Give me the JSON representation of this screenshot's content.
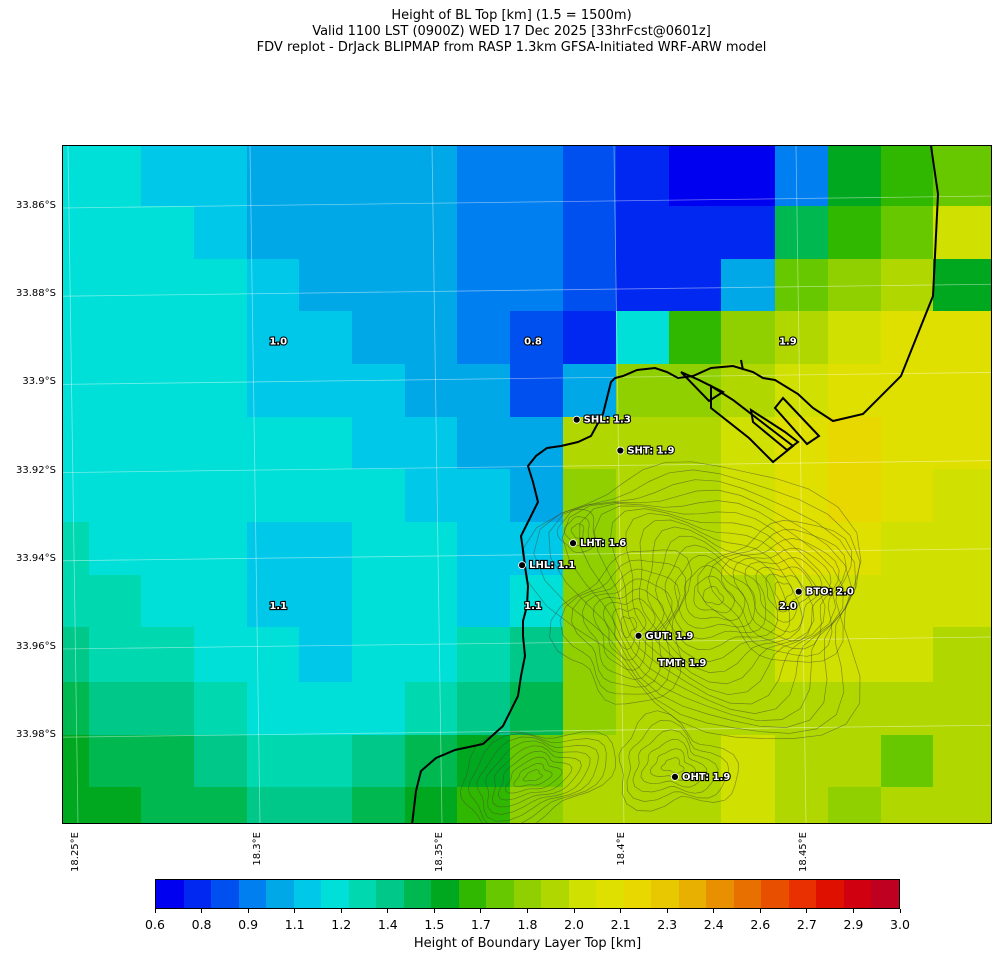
{
  "title": {
    "line1": "Height of BL Top [km] (1.5 = 1500m)",
    "line2": "Valid 1100 LST (0900Z) WED 17 Dec 2025 [33hrFcst@0601z]",
    "line3": "FDV replot - DrJack BLIPMAP from RASP 1.3km GFSA-Initiated WRF-ARW model"
  },
  "axes": {
    "lat_ticks": [
      "33.86°S",
      "33.88°S",
      "33.9°S",
      "33.92°S",
      "33.94°S",
      "33.96°S",
      "33.98°S"
    ],
    "lon_ticks": [
      "18.25°E",
      "18.3°E",
      "18.35°E",
      "18.4°E",
      "18.45°E"
    ]
  },
  "colorbar": {
    "label": "Height of Boundary Layer Top [km]",
    "tick_labels": [
      "0.6",
      "0.8",
      "0.9",
      "1.1",
      "1.2",
      "1.4",
      "1.5",
      "1.7",
      "1.8",
      "2.0",
      "2.1",
      "2.3",
      "2.4",
      "2.6",
      "2.7",
      "2.9",
      "3.0"
    ],
    "colors": [
      "#0000f0",
      "#0028f0",
      "#0050f0",
      "#0080f0",
      "#00a8e8",
      "#00c8e8",
      "#00e0d8",
      "#00d8b0",
      "#00c888",
      "#00b850",
      "#00a820",
      "#30b800",
      "#68c800",
      "#90d000",
      "#b0d800",
      "#d0e000",
      "#e0e000",
      "#e8d800",
      "#e8c800",
      "#e8b000",
      "#e89000",
      "#e87000",
      "#e85000",
      "#e83000",
      "#e01000",
      "#d00010",
      "#c00020"
    ]
  },
  "grid_values": [
    {
      "label": "1.0",
      "lat": -33.89,
      "lon": 18.305
    },
    {
      "label": "0.8",
      "lat": -33.89,
      "lon": 18.375
    },
    {
      "label": "1.9",
      "lat": -33.89,
      "lon": 18.445
    },
    {
      "label": "1.1",
      "lat": -33.95,
      "lon": 18.305
    },
    {
      "label": "1.1",
      "lat": -33.95,
      "lon": 18.375
    },
    {
      "label": "2.0",
      "lat": -33.95,
      "lon": 18.445
    },
    {
      "label": "TMT: 1.9",
      "lat": -33.963,
      "lon": 18.416
    }
  ],
  "stations": [
    {
      "label": "SHL: 1.3",
      "lat": -33.908,
      "lon": 18.387
    },
    {
      "label": "SHT: 1.9",
      "lat": -33.915,
      "lon": 18.399
    },
    {
      "label": "LHT: 1.6",
      "lat": -33.936,
      "lon": 18.386
    },
    {
      "label": "LHL: 1.1",
      "lat": -33.941,
      "lon": 18.372
    },
    {
      "label": "BTO: 2.0",
      "lat": -33.947,
      "lon": 18.448
    },
    {
      "label": "GUT: 1.9",
      "lat": -33.957,
      "lon": 18.404
    },
    {
      "label": "OHT: 1.9",
      "lat": -33.989,
      "lon": 18.414
    }
  ]
}
